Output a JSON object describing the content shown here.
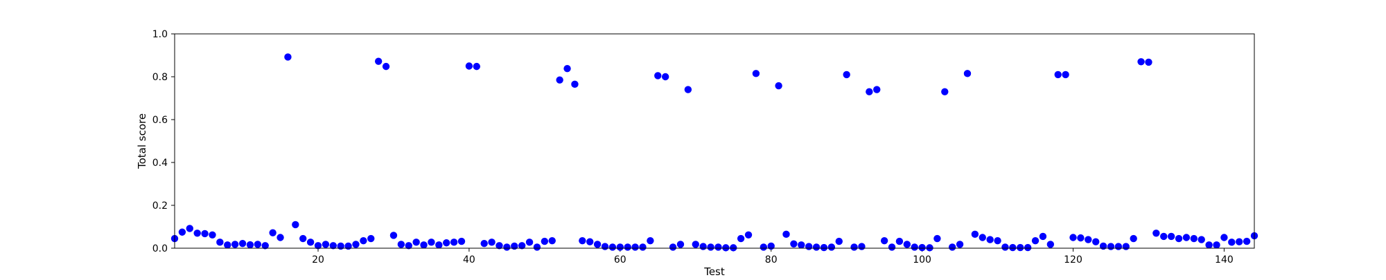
{
  "chart_data": {
    "type": "scatter",
    "title": "",
    "xlabel": "Test",
    "ylabel": "Total score",
    "xlim": [
      1,
      144
    ],
    "ylim": [
      0.0,
      1.0
    ],
    "xticks": [
      20,
      40,
      60,
      80,
      100,
      120,
      140
    ],
    "yticks": [
      0.0,
      0.2,
      0.4,
      0.6,
      0.8,
      1.0
    ],
    "xtick_labels": [
      "20",
      "40",
      "60",
      "80",
      "100",
      "120",
      "140"
    ],
    "ytick_labels": [
      "0.0",
      "0.2",
      "0.4",
      "0.6",
      "0.8",
      "1.0"
    ],
    "grid": false,
    "legend": "none",
    "marker_color": "#0000ff",
    "series": [
      {
        "x": [
          1,
          2,
          3,
          4,
          5,
          6,
          7,
          8,
          9,
          10,
          11,
          12,
          13,
          14,
          15,
          16,
          17,
          18,
          19,
          20,
          21,
          22,
          23,
          24,
          25,
          26,
          27,
          28,
          29,
          30,
          31,
          32,
          33,
          34,
          35,
          36,
          37,
          38,
          39,
          40,
          41,
          42,
          43,
          44,
          45,
          46,
          47,
          48,
          49,
          50,
          51,
          52,
          53,
          54,
          55,
          56,
          57,
          58,
          59,
          60,
          61,
          62,
          63,
          64,
          65,
          66,
          67,
          68,
          69,
          70,
          71,
          72,
          73,
          74,
          75,
          76,
          77,
          78,
          79,
          80,
          81,
          82,
          83,
          84,
          85,
          86,
          87,
          88,
          89,
          90,
          91,
          92,
          93,
          94,
          95,
          96,
          97,
          98,
          99,
          100,
          101,
          102,
          103,
          104,
          105,
          106,
          107,
          108,
          109,
          110,
          111,
          112,
          113,
          114,
          115,
          116,
          117,
          118,
          119,
          120,
          121,
          122,
          123,
          124,
          125,
          126,
          127,
          128,
          129,
          130,
          131,
          132,
          133,
          134,
          135,
          136,
          137,
          138,
          139,
          140,
          141,
          142,
          143,
          144
        ],
        "y": [
          0.045,
          0.075,
          0.092,
          0.07,
          0.068,
          0.062,
          0.028,
          0.015,
          0.018,
          0.022,
          0.016,
          0.018,
          0.012,
          0.072,
          0.05,
          0.892,
          0.11,
          0.045,
          0.028,
          0.012,
          0.018,
          0.012,
          0.01,
          0.01,
          0.018,
          0.035,
          0.045,
          0.872,
          0.848,
          0.06,
          0.018,
          0.012,
          0.028,
          0.015,
          0.028,
          0.015,
          0.025,
          0.028,
          0.032,
          0.85,
          0.848,
          0.022,
          0.028,
          0.012,
          0.005,
          0.01,
          0.012,
          0.028,
          0.005,
          0.032,
          0.035,
          0.785,
          0.838,
          0.765,
          0.035,
          0.03,
          0.018,
          0.008,
          0.005,
          0.005,
          0.005,
          0.005,
          0.005,
          0.035,
          0.805,
          0.8,
          0.005,
          0.018,
          0.74,
          0.018,
          0.008,
          0.005,
          0.005,
          0.002,
          0.002,
          0.045,
          0.062,
          0.815,
          0.005,
          0.01,
          0.758,
          0.065,
          0.02,
          0.015,
          0.008,
          0.005,
          0.003,
          0.005,
          0.032,
          0.81,
          0.005,
          0.008,
          0.73,
          0.74,
          0.035,
          0.005,
          0.032,
          0.018,
          0.005,
          0.003,
          0.002,
          0.045,
          0.73,
          0.005,
          0.018,
          0.815,
          0.065,
          0.05,
          0.04,
          0.035,
          0.005,
          0.003,
          0.003,
          0.003,
          0.035,
          0.055,
          0.018,
          0.81,
          0.81,
          0.05,
          0.048,
          0.04,
          0.03,
          0.01,
          0.008,
          0.008,
          0.008,
          0.045,
          0.87,
          0.868,
          0.07,
          0.055,
          0.055,
          0.045,
          0.05,
          0.045,
          0.04,
          0.015,
          0.015,
          0.05,
          0.028,
          0.03,
          0.032,
          0.058
        ]
      }
    ]
  }
}
